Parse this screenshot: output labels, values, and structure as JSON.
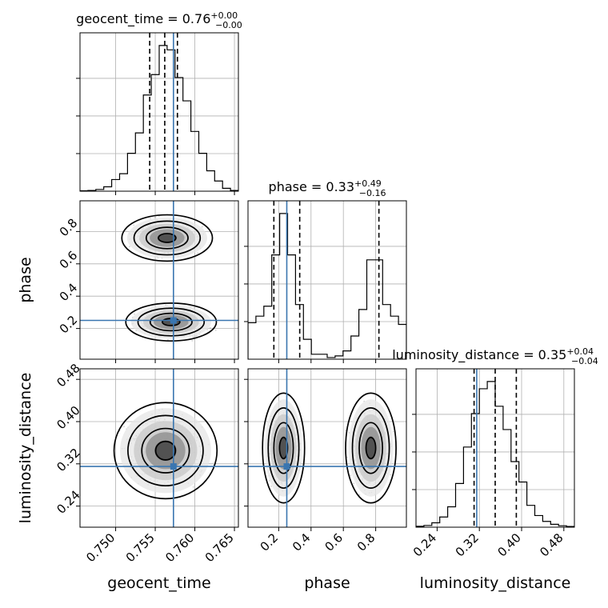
{
  "chart_data": {
    "type": "corner",
    "parameters": [
      {
        "name": "geocent_time",
        "median": "0.76",
        "plus": "+0.00",
        "minus": "−0.00",
        "range": [
          0.7455,
          0.7655
        ],
        "ticks": [
          0.75,
          0.755,
          0.76,
          0.765
        ],
        "tick_labels": [
          "0.750",
          "0.755",
          "0.760",
          "0.765"
        ],
        "quantiles": [
          0.7543,
          0.7562,
          0.7578
        ],
        "truth": 0.7573,
        "hist": [
          0.003,
          0.005,
          0.012,
          0.03,
          0.08,
          0.12,
          0.26,
          0.4,
          0.66,
          0.8,
          1.0,
          0.97,
          0.78,
          0.62,
          0.41,
          0.26,
          0.14,
          0.07,
          0.02,
          0.005
        ]
      },
      {
        "name": "phase",
        "median": "0.33",
        "plus": "+0.49",
        "minus": "−0.16",
        "range": [
          0.01,
          0.99
        ],
        "ticks": [
          0.2,
          0.4,
          0.6,
          0.8
        ],
        "tick_labels": [
          "0.2",
          "0.4",
          "0.6",
          "0.8"
        ],
        "quantiles": [
          0.17,
          0.33,
          0.82
        ],
        "truth": 0.25,
        "hist": [
          0.22,
          0.26,
          0.32,
          0.63,
          0.88,
          0.63,
          0.33,
          0.12,
          0.03,
          0.03,
          0.01,
          0.02,
          0.05,
          0.14,
          0.3,
          0.6,
          0.6,
          0.33,
          0.26,
          0.21
        ]
      },
      {
        "name": "luminosity_distance",
        "median": "0.35",
        "plus": "+0.04",
        "minus": "−0.04",
        "range": [
          0.2,
          0.5
        ],
        "ticks": [
          0.24,
          0.32,
          0.4,
          0.48
        ],
        "tick_labels": [
          "0.24",
          "0.32",
          "0.40",
          "0.48"
        ],
        "quantiles": [
          0.31,
          0.35,
          0.39
        ],
        "truth": 0.315,
        "hist": [
          0.006,
          0.012,
          0.03,
          0.07,
          0.14,
          0.3,
          0.55,
          0.78,
          0.95,
          1.0,
          0.83,
          0.67,
          0.45,
          0.31,
          0.15,
          0.08,
          0.04,
          0.02,
          0.01,
          0.005
        ]
      }
    ],
    "pairs": [
      {
        "x": 0,
        "y": 1,
        "modes": [
          [
            0.757,
            0.24,
            0.0022,
            0.045
          ],
          [
            0.7565,
            0.76,
            0.0022,
            0.055
          ]
        ]
      },
      {
        "x": 0,
        "y": 2,
        "modes": [
          [
            0.7563,
            0.345,
            0.0025,
            0.035
          ]
        ]
      },
      {
        "x": 1,
        "y": 2,
        "modes": [
          [
            0.23,
            0.35,
            0.05,
            0.04
          ],
          [
            0.77,
            0.35,
            0.06,
            0.04
          ]
        ]
      }
    ],
    "grid": true
  }
}
